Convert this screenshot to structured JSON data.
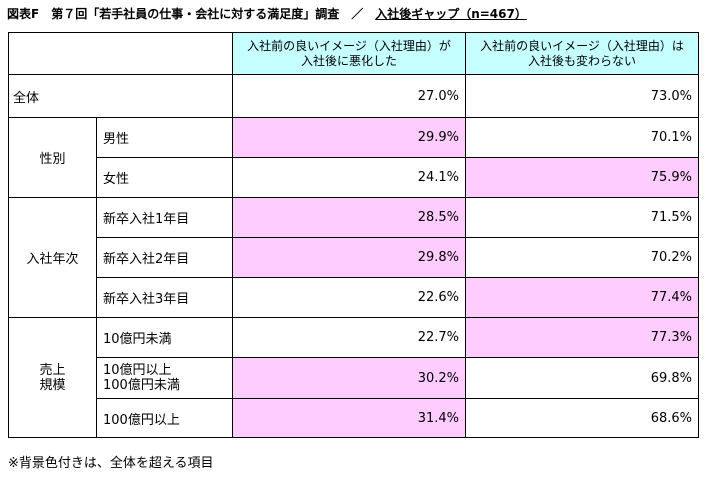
{
  "title": {
    "prefix": "図表F　第７回「若手社員の仕事・会社に対する満足度」調査　／　",
    "gap": "入社後ギャップ（n=467）"
  },
  "headers": {
    "worse": "入社前の良いイメージ（入社理由）が\n入社後に悪化した",
    "same": "入社前の良いイメージ（入社理由）は\n入社後も変わらない"
  },
  "all": {
    "label": "全体",
    "worse": "27.0%",
    "same": "73.0%"
  },
  "groups": {
    "gender": {
      "label": "性別",
      "rows": [
        {
          "label": "男性",
          "worse": "29.9%",
          "same": "70.1%"
        },
        {
          "label": "女性",
          "worse": "24.1%",
          "same": "75.9%"
        }
      ]
    },
    "year": {
      "label": "入社年次",
      "rows": [
        {
          "label": "新卒入社1年目",
          "worse": "28.5%",
          "same": "71.5%"
        },
        {
          "label": "新卒入社2年目",
          "worse": "29.8%",
          "same": "70.2%"
        },
        {
          "label": "新卒入社3年目",
          "worse": "22.6%",
          "same": "77.4%"
        }
      ]
    },
    "scale": {
      "label": "売上\n規模",
      "rows": [
        {
          "label": "10億円未満",
          "worse": "22.7%",
          "same": "77.3%"
        },
        {
          "label": "10億円以上\n100億円未満",
          "worse": "30.2%",
          "same": "69.8%"
        },
        {
          "label": "100億円以上",
          "worse": "31.4%",
          "same": "68.6%"
        }
      ]
    }
  },
  "note": "※背景色付きは、全体を超える項目",
  "colors": {
    "header_bg": "#c6ffff",
    "highlight_bg": "#ffccff"
  }
}
